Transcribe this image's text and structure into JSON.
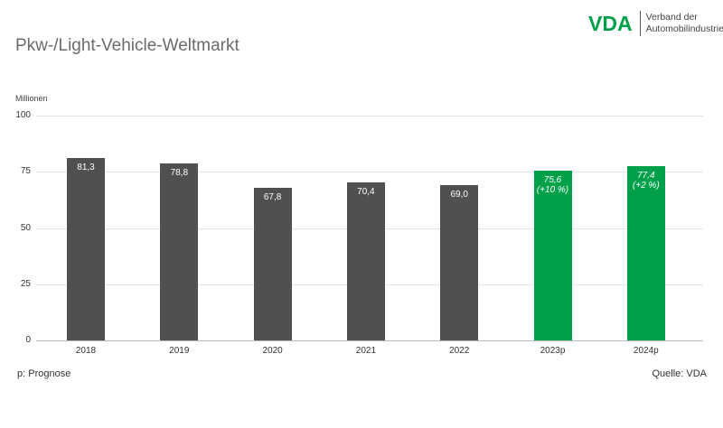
{
  "header": {
    "title": "Pkw-/Light-Vehicle-Weltmarkt",
    "logo": {
      "mark": "VDA",
      "line1": "Verband der",
      "line2": "Automobilindustrie"
    }
  },
  "footer": {
    "note": "p: Prognose",
    "source": "Quelle: VDA"
  },
  "colors": {
    "actual": "#505050",
    "forecast": "#00a04b",
    "brand": "#00a04b"
  },
  "chart_data": {
    "type": "bar",
    "title": "Pkw-/Light-Vehicle-Weltmarkt",
    "ylabel": "Millionen",
    "xlabel": "",
    "ylim": [
      0,
      100
    ],
    "yticks": [
      "0",
      "25",
      "50",
      "75",
      "100"
    ],
    "grid": true,
    "categories": [
      "2018",
      "2019",
      "2020",
      "2021",
      "2022",
      "2023p",
      "2024p"
    ],
    "values": [
      81.3,
      78.8,
      67.8,
      70.4,
      69.0,
      75.6,
      77.4
    ],
    "labels": [
      "81,3",
      "78,8",
      "67,8",
      "70,4",
      "69,0",
      "75,6",
      "77,4"
    ],
    "sublabels": [
      "",
      "",
      "",
      "",
      "",
      "(+10 %)",
      "(+2 %)"
    ],
    "forecast": [
      false,
      false,
      false,
      false,
      false,
      true,
      true
    ],
    "legend": []
  }
}
